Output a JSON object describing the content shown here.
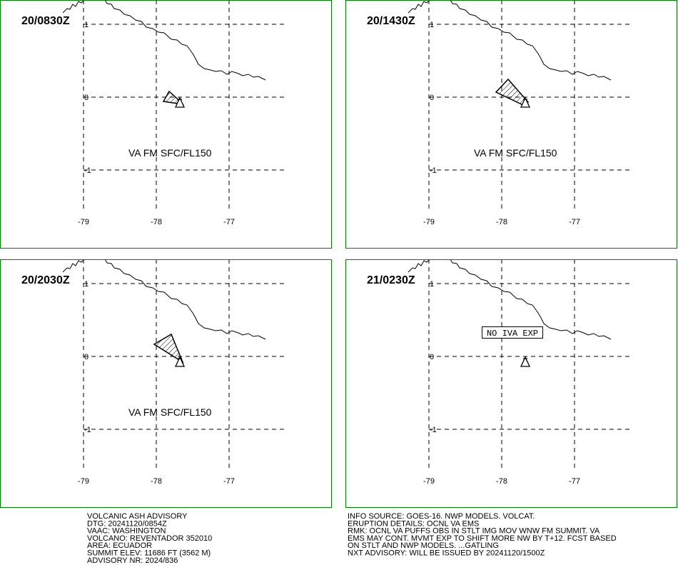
{
  "panels": [
    {
      "time": "20/0830Z",
      "annotation": "VA FM SFC/FL150"
    },
    {
      "time": "20/1430Z",
      "annotation": "VA FM SFC/FL150"
    },
    {
      "time": "20/2030Z",
      "annotation": "VA FM SFC/FL150"
    },
    {
      "time": "21/0230Z",
      "annotation": "NO IVA EXP"
    }
  ],
  "lat_labels": [
    "1",
    "0",
    "-1"
  ],
  "lon_labels": [
    "-79",
    "-78",
    "-77"
  ],
  "advisory_left": [
    "VOLCANIC ASH ADVISORY",
    "DTG: 20241120/0854Z",
    "VAAC: WASHINGTON",
    "VOLCANO: REVENTADOR 352010",
    "AREA: ECUADOR",
    "SUMMIT ELEV: 11686 FT (3562 M)",
    "ADVISORY NR: 2024/836"
  ],
  "advisory_right": [
    "INFO SOURCE: GOES-16. NWP MODELS. VOLCAT.",
    "ERUPTION DETAILS: OCNL VA EMS",
    "RMK: OCNL VA PUFFS OBS IN STLT IMG MOV WNW FM SUMMIT. VA",
    "EMS MAY CONT. MVMT EXP TO SHIFT MORE NW BY T+12. FCST BASED",
    "ON STLT AND NWP MODELS. ...GATLING",
    "NXT ADVISORY: WILL BE ISSUED BY 20241120/1500Z"
  ]
}
